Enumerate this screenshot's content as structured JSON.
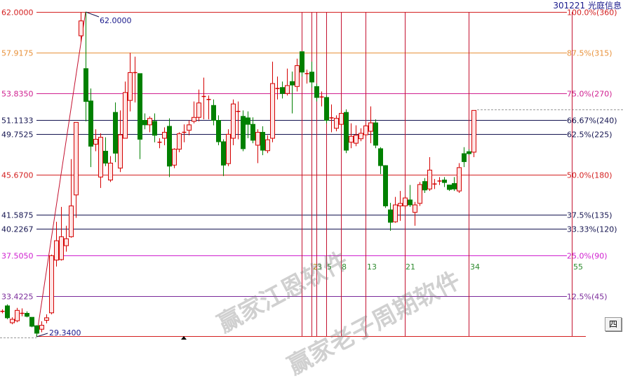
{
  "header": {
    "title": "301221 光庭信息"
  },
  "watermarks": [
    "赢家江恩软件",
    "赢家老子周期软件"
  ],
  "button_label": "四",
  "colors": {
    "up": "#d40000",
    "up_fill": "#ffe4e4",
    "down": "#008000",
    "fib_label": "#2e8b2e"
  },
  "chart_data": {
    "type": "candlestick",
    "ylim": [
      29.34,
      62.0
    ],
    "grid": false,
    "high_label": "62.0000",
    "low_label": "29.3400",
    "levels": [
      {
        "price": "62.0000",
        "pct": "100.0%(360)",
        "color": "#d42020"
      },
      {
        "price": "57.9175",
        "pct": "87.5%(315)",
        "color": "#e8913a"
      },
      {
        "price": "53.8350",
        "pct": "75.0%(270)",
        "color": "#d02090"
      },
      {
        "price": "51.1133",
        "pct": "66.67%(240)",
        "color": "#141450"
      },
      {
        "price": "49.7525",
        "pct": "62.5%(225)",
        "color": "#141450"
      },
      {
        "price": "45.6700",
        "pct": "50.0%(180)",
        "color": "#d42020"
      },
      {
        "price": "41.5875",
        "pct": "37.5%(135)",
        "color": "#141450"
      },
      {
        "price": "40.2267",
        "pct": "33.33%(120)",
        "color": "#141450"
      },
      {
        "price": "37.5050",
        "pct": "25.0%(90)",
        "color": "#d020d0"
      },
      {
        "price": "33.4225",
        "pct": "12.5%(45)",
        "color": "#7a2a9a"
      }
    ],
    "fib_labels": [
      "2",
      "3",
      "5",
      "8",
      "13",
      "21",
      "34",
      "55"
    ],
    "fib_bar_index": [
      61,
      63,
      64,
      66,
      69,
      74,
      82,
      95,
      116
    ],
    "candles_ochl": [
      [
        31.9,
        31.9,
        32.1,
        31.7
      ],
      [
        32.45,
        31.25,
        32.6,
        31.1
      ],
      [
        30.75,
        31.1,
        31.3,
        30.6
      ],
      [
        30.95,
        32.0,
        32.25,
        30.8
      ],
      [
        31.7,
        31.7,
        32.2,
        31.4
      ],
      [
        31.7,
        31.4,
        31.9,
        31.3
      ],
      [
        31.3,
        30.4,
        31.3,
        30.3
      ],
      [
        30.45,
        29.7,
        30.5,
        29.34
      ],
      [
        30.1,
        30.5,
        30.9,
        29.8
      ],
      [
        31.0,
        31.25,
        31.6,
        30.7
      ],
      [
        31.75,
        37.5,
        37.6,
        31.6
      ],
      [
        37.05,
        39.0,
        40.9,
        36.4
      ],
      [
        37.1,
        39.4,
        42.4,
        37.0
      ],
      [
        38.5,
        39.2,
        40.5,
        37.9
      ],
      [
        39.4,
        42.5,
        47.2,
        39.3
      ],
      [
        43.6,
        50.9,
        50.9,
        41.3
      ],
      [
        59.6,
        61.1,
        62.0,
        59.0
      ],
      [
        56.3,
        53.0,
        62.0,
        51.0
      ],
      [
        53.05,
        48.5,
        54.3,
        46.4
      ],
      [
        48.7,
        49.2,
        50.2,
        48.0
      ],
      [
        45.4,
        49.4,
        49.8,
        44.3
      ],
      [
        48.0,
        46.8,
        49.4,
        46.5
      ],
      [
        45.1,
        46.8,
        47.5,
        44.9
      ],
      [
        51.9,
        47.8,
        52.9,
        46.9
      ],
      [
        46.3,
        49.65,
        52.1,
        45.9
      ],
      [
        49.3,
        53.9,
        55.0,
        49.3
      ],
      [
        53.1,
        55.9,
        57.9,
        52.0
      ],
      [
        55.9,
        55.9,
        57.5,
        52.9
      ],
      [
        55.8,
        49.2,
        55.8,
        47.2
      ],
      [
        51.1,
        50.65,
        51.8,
        50.2
      ],
      [
        50.65,
        51.3,
        51.5,
        49.9
      ],
      [
        51.0,
        49.6,
        51.8,
        48.9
      ],
      [
        48.9,
        48.9,
        49.3,
        48.3
      ],
      [
        49.3,
        49.9,
        50.4,
        48.6
      ],
      [
        50.5,
        46.5,
        51.3,
        45.4
      ],
      [
        46.6,
        48.2,
        48.3,
        46.3
      ],
      [
        48.2,
        49.75,
        49.9,
        47.9
      ],
      [
        49.9,
        49.9,
        50.7,
        48.9
      ],
      [
        50.1,
        50.65,
        51.1,
        49.6
      ],
      [
        51.0,
        51.4,
        53.0,
        50.8
      ],
      [
        51.4,
        52.85,
        54.2,
        51.0
      ],
      [
        53.5,
        53.5,
        55.4,
        51.2
      ],
      [
        53.1,
        53.2,
        53.6,
        51.2
      ],
      [
        52.6,
        51.1,
        53.2,
        50.6
      ],
      [
        51.1,
        48.95,
        51.6,
        48.6
      ],
      [
        48.95,
        46.6,
        49.2,
        45.5
      ],
      [
        46.75,
        49.7,
        50.2,
        46.5
      ],
      [
        49.3,
        52.75,
        53.2,
        48.6
      ],
      [
        52.0,
        52.0,
        53.0,
        49.2
      ],
      [
        51.5,
        48.25,
        52.1,
        48.0
      ],
      [
        51.35,
        50.7,
        52.0,
        49.3
      ],
      [
        50.7,
        49.1,
        51.4,
        48.8
      ],
      [
        48.6,
        49.9,
        50.2,
        46.8
      ],
      [
        49.9,
        48.1,
        50.5,
        47.6
      ],
      [
        48.05,
        49.15,
        49.6,
        47.8
      ],
      [
        49.3,
        54.8,
        57.0,
        48.9
      ],
      [
        54.3,
        54.3,
        55.5,
        53.2
      ],
      [
        54.4,
        53.8,
        55.0,
        53.3
      ],
      [
        53.8,
        54.6,
        56.3,
        53.6
      ],
      [
        55.0,
        54.65,
        56.0,
        51.8
      ],
      [
        54.5,
        56.6,
        57.3,
        54.0
      ],
      [
        58.0,
        55.95,
        58.0,
        55.5
      ],
      [
        55.7,
        55.8,
        56.2,
        54.8
      ],
      [
        55.95,
        54.95,
        57.0,
        54.4
      ],
      [
        54.5,
        53.4,
        54.8,
        53.0
      ],
      [
        53.45,
        53.45,
        54.0,
        52.5
      ],
      [
        53.4,
        51.1,
        53.6,
        50.8
      ],
      [
        51.35,
        51.35,
        52.7,
        49.9
      ],
      [
        50.3,
        51.3,
        51.6,
        50.0
      ],
      [
        50.7,
        51.8,
        52.1,
        50.5
      ],
      [
        51.9,
        48.1,
        52.2,
        47.8
      ],
      [
        48.9,
        49.5,
        50.8,
        48.3
      ],
      [
        48.8,
        49.6,
        50.6,
        48.5
      ],
      [
        49.25,
        49.8,
        50.3,
        49.0
      ],
      [
        49.65,
        50.55,
        50.8,
        49.3
      ],
      [
        50.0,
        50.85,
        52.5,
        48.8
      ],
      [
        50.85,
        48.6,
        51.2,
        48.3
      ],
      [
        48.25,
        46.55,
        48.4,
        45.7
      ],
      [
        46.55,
        42.5,
        46.6,
        42.3
      ],
      [
        42.1,
        40.85,
        42.8,
        40.0
      ],
      [
        40.9,
        42.6,
        43.4,
        40.8
      ],
      [
        42.5,
        42.75,
        44.0,
        41.0
      ],
      [
        42.5,
        43.3,
        43.5,
        42.2
      ],
      [
        43.1,
        42.6,
        44.6,
        42.4
      ],
      [
        41.85,
        42.6,
        42.9,
        40.5
      ],
      [
        42.75,
        44.65,
        44.9,
        42.5
      ],
      [
        44.95,
        44.1,
        45.3,
        43.8
      ],
      [
        44.2,
        46.1,
        47.4,
        44.0
      ],
      [
        44.7,
        44.7,
        45.2,
        44.2
      ],
      [
        45.0,
        45.0,
        45.4,
        44.6
      ],
      [
        45.1,
        44.85,
        45.4,
        44.4
      ],
      [
        44.6,
        44.15,
        44.6,
        44.0
      ],
      [
        44.75,
        44.2,
        45.4,
        44.0
      ],
      [
        44.0,
        46.35,
        46.8,
        43.8
      ],
      [
        47.75,
        46.95,
        48.4,
        46.4
      ],
      [
        47.95,
        47.75,
        48.2,
        47.6
      ],
      [
        47.9,
        52.1,
        52.1,
        47.4
      ]
    ]
  }
}
